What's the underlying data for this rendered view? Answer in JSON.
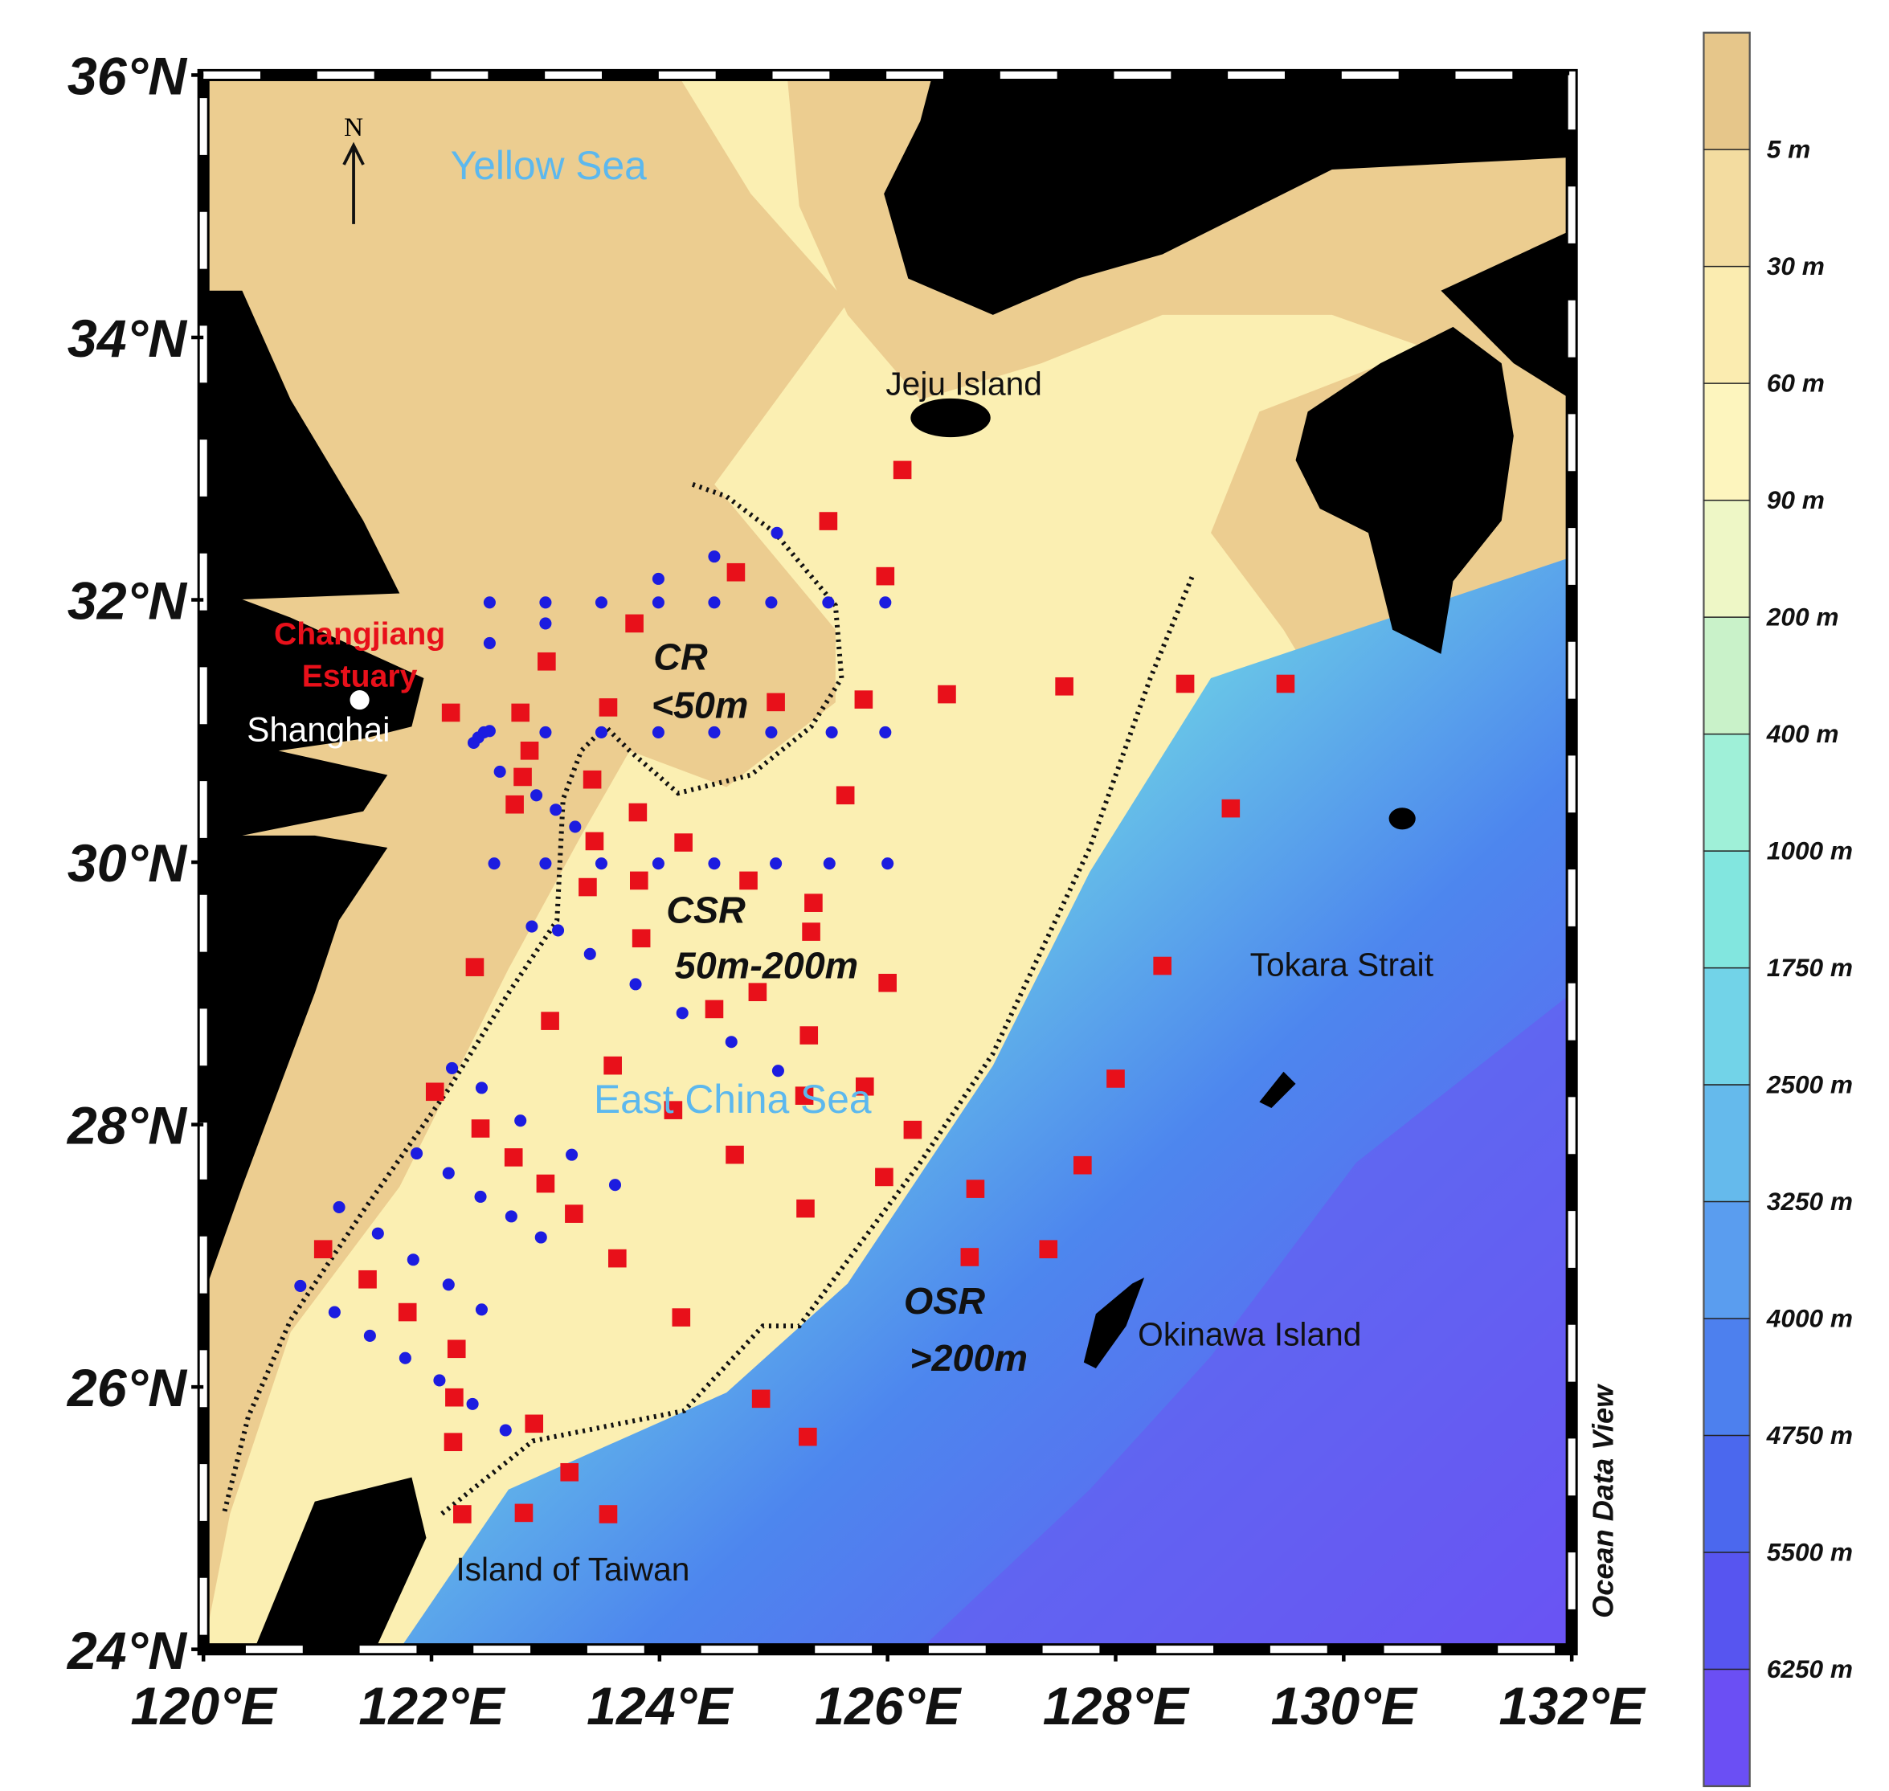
{
  "map": {
    "xlim": [
      120,
      132
    ],
    "ylim": [
      24,
      36
    ],
    "xticks": [
      {
        "value": 120,
        "label": "120°E"
      },
      {
        "value": 122,
        "label": "122°E"
      },
      {
        "value": 124,
        "label": "124°E"
      },
      {
        "value": 126,
        "label": "126°E"
      },
      {
        "value": 128,
        "label": "128°E"
      },
      {
        "value": 130,
        "label": "130°E"
      },
      {
        "value": 132,
        "label": "132°E"
      }
    ],
    "yticks": [
      {
        "value": 24,
        "label": "24°N"
      },
      {
        "value": 26,
        "label": "26°N"
      },
      {
        "value": 28,
        "label": "28°N"
      },
      {
        "value": 30,
        "label": "30°N"
      },
      {
        "value": 32,
        "label": "32°N"
      },
      {
        "value": 34,
        "label": "34°N"
      },
      {
        "value": 36,
        "label": "36°N"
      }
    ],
    "labels": {
      "north": "N",
      "yellow_sea": "Yellow Sea",
      "east_china_sea": "East China Sea",
      "jeju": "Jeju Island",
      "changjiang_1": "Changjiang",
      "changjiang_2": "Estuary",
      "shanghai": "Shanghai",
      "tokara": "Tokara Strait",
      "okinawa": "Okinawa Island",
      "taiwan": "Island of Taiwan",
      "cr": "CR",
      "cr_depth": "<50m",
      "csr": "CSR",
      "csr_depth": "50m-200m",
      "osr": "OSR",
      "osr_depth": ">200m",
      "credit": "Ocean Data View"
    },
    "stations": {
      "red": {
        "color": "#e8101a",
        "points": [
          [
            126.13,
            32.99
          ],
          [
            125.48,
            32.6
          ],
          [
            124.67,
            32.21
          ],
          [
            125.98,
            32.18
          ],
          [
            123.78,
            31.82
          ],
          [
            123.01,
            31.53
          ],
          [
            122.17,
            31.14
          ],
          [
            122.78,
            31.14
          ],
          [
            123.55,
            31.18
          ],
          [
            125.02,
            31.22
          ],
          [
            125.79,
            31.24
          ],
          [
            126.52,
            31.28
          ],
          [
            127.55,
            31.34
          ],
          [
            128.61,
            31.36
          ],
          [
            129.49,
            31.36
          ],
          [
            122.86,
            30.85
          ],
          [
            122.8,
            30.65
          ],
          [
            123.41,
            30.63
          ],
          [
            122.73,
            30.44
          ],
          [
            123.81,
            30.38
          ],
          [
            125.63,
            30.51
          ],
          [
            129.01,
            30.41
          ],
          [
            123.43,
            30.16
          ],
          [
            124.21,
            30.15
          ],
          [
            124.78,
            29.86
          ],
          [
            123.37,
            29.81
          ],
          [
            123.82,
            29.86
          ],
          [
            125.35,
            29.69
          ],
          [
            125.33,
            29.47
          ],
          [
            123.84,
            29.42
          ],
          [
            122.38,
            29.2
          ],
          [
            126.0,
            29.08
          ],
          [
            128.41,
            29.21
          ],
          [
            124.86,
            29.01
          ],
          [
            124.48,
            28.88
          ],
          [
            123.04,
            28.79
          ],
          [
            125.31,
            28.68
          ],
          [
            123.59,
            28.45
          ],
          [
            125.8,
            28.29
          ],
          [
            128.0,
            28.35
          ],
          [
            122.03,
            28.25
          ],
          [
            125.27,
            28.22
          ],
          [
            124.12,
            28.11
          ],
          [
            122.43,
            27.97
          ],
          [
            126.22,
            27.96
          ],
          [
            122.72,
            27.75
          ],
          [
            124.66,
            27.77
          ],
          [
            123.0,
            27.55
          ],
          [
            125.97,
            27.6
          ],
          [
            126.77,
            27.51
          ],
          [
            127.71,
            27.69
          ],
          [
            123.25,
            27.32
          ],
          [
            125.28,
            27.36
          ],
          [
            121.05,
            27.05
          ],
          [
            123.63,
            26.98
          ],
          [
            126.72,
            26.99
          ],
          [
            127.41,
            27.05
          ],
          [
            121.44,
            26.82
          ],
          [
            121.79,
            26.57
          ],
          [
            124.19,
            26.53
          ],
          [
            122.22,
            26.29
          ],
          [
            122.2,
            25.92
          ],
          [
            124.89,
            25.91
          ],
          [
            122.9,
            25.72
          ],
          [
            122.19,
            25.58
          ],
          [
            125.3,
            25.62
          ],
          [
            123.21,
            25.35
          ],
          [
            122.27,
            25.03
          ],
          [
            122.81,
            25.04
          ],
          [
            123.55,
            25.03
          ]
        ]
      },
      "blue": {
        "color": "#1c1ce0",
        "points": [
          [
            122.51,
            31.98
          ],
          [
            123.0,
            31.98
          ],
          [
            123.49,
            31.98
          ],
          [
            123.99,
            31.98
          ],
          [
            124.48,
            31.98
          ],
          [
            124.98,
            31.98
          ],
          [
            125.48,
            31.98
          ],
          [
            125.98,
            31.98
          ],
          [
            123.99,
            32.16
          ],
          [
            124.48,
            32.33
          ],
          [
            125.03,
            32.51
          ],
          [
            123.0,
            31.82
          ],
          [
            122.51,
            31.67
          ],
          [
            122.37,
            30.91
          ],
          [
            122.41,
            30.95
          ],
          [
            122.46,
            30.99
          ],
          [
            122.51,
            31.0
          ],
          [
            123.0,
            30.99
          ],
          [
            123.49,
            30.99
          ],
          [
            123.99,
            30.99
          ],
          [
            124.48,
            30.99
          ],
          [
            124.98,
            30.99
          ],
          [
            125.51,
            30.99
          ],
          [
            125.98,
            30.99
          ],
          [
            122.6,
            30.69
          ],
          [
            122.92,
            30.51
          ],
          [
            123.09,
            30.4
          ],
          [
            123.26,
            30.27
          ],
          [
            122.55,
            29.99
          ],
          [
            123.0,
            29.99
          ],
          [
            123.49,
            29.99
          ],
          [
            123.99,
            29.99
          ],
          [
            124.48,
            29.99
          ],
          [
            125.02,
            29.99
          ],
          [
            125.49,
            29.99
          ],
          [
            126.0,
            29.99
          ],
          [
            122.88,
            29.51
          ],
          [
            123.11,
            29.48
          ],
          [
            123.39,
            29.3
          ],
          [
            123.79,
            29.07
          ],
          [
            124.2,
            28.85
          ],
          [
            124.63,
            28.63
          ],
          [
            125.04,
            28.41
          ],
          [
            122.18,
            28.43
          ],
          [
            122.44,
            28.28
          ],
          [
            122.78,
            28.03
          ],
          [
            123.23,
            27.77
          ],
          [
            123.61,
            27.54
          ],
          [
            121.87,
            27.78
          ],
          [
            122.15,
            27.63
          ],
          [
            122.43,
            27.45
          ],
          [
            121.19,
            27.37
          ],
          [
            122.7,
            27.3
          ],
          [
            122.96,
            27.14
          ],
          [
            121.53,
            27.17
          ],
          [
            121.84,
            26.97
          ],
          [
            122.15,
            26.78
          ],
          [
            120.85,
            26.77
          ],
          [
            121.15,
            26.57
          ],
          [
            122.44,
            26.59
          ],
          [
            121.46,
            26.39
          ],
          [
            121.77,
            26.22
          ],
          [
            122.07,
            26.05
          ],
          [
            122.36,
            25.87
          ],
          [
            122.65,
            25.67
          ]
        ]
      }
    }
  },
  "colorbar": {
    "labels": [
      "5 m",
      "30 m",
      "60 m",
      "90 m",
      "200 m",
      "400 m",
      "1000 m",
      "1750 m",
      "2500 m",
      "3250 m",
      "4000 m",
      "4750 m",
      "5500 m",
      "6250 m"
    ],
    "colors": [
      "#e6c68a",
      "#f3dca0",
      "#fbecb0",
      "#fdf5be",
      "#eef7c6",
      "#c9f2c9",
      "#9ff0d8",
      "#82e6df",
      "#72d3e8",
      "#65baec",
      "#5a9def",
      "#4d80ee",
      "#4b68ee",
      "#5755f0",
      "#6b4ff4"
    ]
  }
}
